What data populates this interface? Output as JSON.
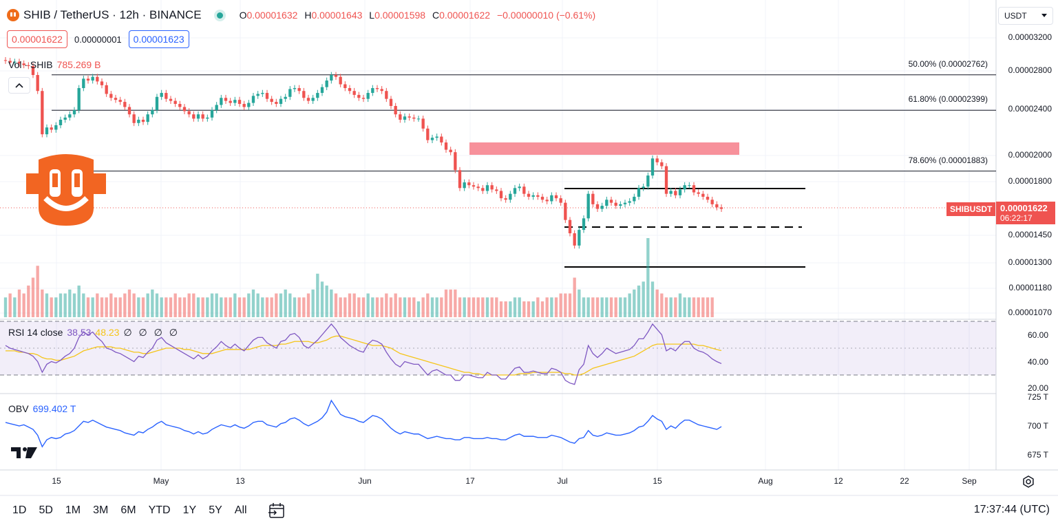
{
  "header": {
    "symbol": "SHIB / TetherUS · 12h · BINANCE",
    "open_label": "O",
    "open": "0.00001632",
    "high_label": "H",
    "high": "0.00001643",
    "low_label": "L",
    "low": "0.00001598",
    "close_label": "C",
    "close": "0.00001622",
    "change": "−0.00000010 (−0.61%)"
  },
  "trade": {
    "sell": "0.00001622",
    "spread": "0.00000001",
    "buy": "0.00001623"
  },
  "volume_legend": {
    "label": "Vol · SHIB",
    "value": "785.269 B"
  },
  "rsi_legend": {
    "label": "RSI 14 close",
    "rsi": "38.53",
    "ma": "48.23",
    "extra": "∅ ∅ ∅ ∅"
  },
  "obv_legend": {
    "label": "OBV",
    "value": "699.402 T"
  },
  "currency": "USDT",
  "price_axis": [
    "0.00003200",
    "0.00002800",
    "0.00002400",
    "0.00002000",
    "0.00001800",
    "0.00001450",
    "0.00001300",
    "0.00001180",
    "0.00001070"
  ],
  "rsi_axis": [
    "60.00",
    "40.00",
    "20.00"
  ],
  "obv_axis": [
    "725 T",
    "700 T",
    "675 T"
  ],
  "fib_levels": [
    {
      "label": "50.00% (0.00002762)",
      "price": 2.762e-05
    },
    {
      "label": "61.80% (0.00002399)",
      "price": 2.399e-05
    },
    {
      "label": "78.60% (0.00001883)",
      "price": 1.883e-05
    }
  ],
  "last_price": {
    "symbol": "SHIBUSDT",
    "value": "0.00001622",
    "countdown": "06:22:17"
  },
  "time_axis": [
    "15",
    "May",
    "13",
    "Jun",
    "17",
    "Jul",
    "15",
    "Aug",
    "12",
    "22",
    "Sep"
  ],
  "ranges": [
    "1D",
    "5D",
    "1M",
    "3M",
    "6M",
    "YTD",
    "1Y",
    "5Y",
    "All"
  ],
  "clock": "17:37:44 (UTC)",
  "colors": {
    "up": "#26a69a",
    "down": "#ef5350",
    "rsi": "#7e57c2",
    "rsi_ma": "#f5c518",
    "obv": "#2962ff",
    "zone": "#f7919b"
  },
  "icons": {
    "settings": "gear-icon",
    "calendar": "calendar-range-icon",
    "collapse": "chevron-up-icon",
    "logo": "shib-logo-icon",
    "tradingview": "tradingview-logo-icon"
  },
  "chart_data": {
    "type": "candlestick",
    "start": "2024-04-01",
    "interval": "12h",
    "close_series": [
      2.92e-05,
      2.9e-05,
      2.91e-05,
      2.89e-05,
      2.87e-05,
      2.86e-05,
      2.76e-05,
      2.59e-05,
      2.18e-05,
      2.24e-05,
      2.22e-05,
      2.26e-05,
      2.31e-05,
      2.33e-05,
      2.36e-05,
      2.4e-05,
      2.62e-05,
      2.72e-05,
      2.7e-05,
      2.74e-05,
      2.69e-05,
      2.65e-05,
      2.56e-05,
      2.52e-05,
      2.5e-05,
      2.48e-05,
      2.43e-05,
      2.36e-05,
      2.28e-05,
      2.31e-05,
      2.29e-05,
      2.36e-05,
      2.4e-05,
      2.53e-05,
      2.57e-05,
      2.51e-05,
      2.49e-05,
      2.46e-05,
      2.43e-05,
      2.39e-05,
      2.36e-05,
      2.32e-05,
      2.36e-05,
      2.32e-05,
      2.33e-05,
      2.4e-05,
      2.45e-05,
      2.52e-05,
      2.49e-05,
      2.47e-05,
      2.5e-05,
      2.46e-05,
      2.43e-05,
      2.47e-05,
      2.54e-05,
      2.56e-05,
      2.57e-05,
      2.51e-05,
      2.48e-05,
      2.46e-05,
      2.51e-05,
      2.53e-05,
      2.61e-05,
      2.62e-05,
      2.59e-05,
      2.52e-05,
      2.49e-05,
      2.52e-05,
      2.57e-05,
      2.63e-05,
      2.7e-05,
      2.76e-05,
      2.74e-05,
      2.66e-05,
      2.62e-05,
      2.59e-05,
      2.55e-05,
      2.52e-05,
      2.51e-05,
      2.57e-05,
      2.62e-05,
      2.61e-05,
      2.59e-05,
      2.51e-05,
      2.44e-05,
      2.36e-05,
      2.31e-05,
      2.34e-05,
      2.33e-05,
      2.32e-05,
      2.32e-05,
      2.23e-05,
      2.13e-05,
      2.15e-05,
      2.16e-05,
      2.11e-05,
      2.05e-05,
      2.03e-05,
      1.89e-05,
      1.76e-05,
      1.8e-05,
      1.78e-05,
      1.77e-05,
      1.76e-05,
      1.74e-05,
      1.78e-05,
      1.75e-05,
      1.74e-05,
      1.69e-05,
      1.68e-05,
      1.72e-05,
      1.76e-05,
      1.77e-05,
      1.72e-05,
      1.7e-05,
      1.71e-05,
      1.7e-05,
      1.68e-05,
      1.67e-05,
      1.71e-05,
      1.69e-05,
      1.66e-05,
      1.55e-05,
      1.47e-05,
      1.4e-05,
      1.49e-05,
      1.56e-05,
      1.72e-05,
      1.65e-05,
      1.62e-05,
      1.64e-05,
      1.68e-05,
      1.66e-05,
      1.64e-05,
      1.65e-05,
      1.66e-05,
      1.67e-05,
      1.7e-05,
      1.76e-05,
      1.77e-05,
      1.85e-05,
      1.98e-05,
      1.95e-05,
      1.92e-05,
      1.72e-05,
      1.74e-05,
      1.71e-05,
      1.75e-05,
      1.78e-05,
      1.78e-05,
      1.73e-05,
      1.72e-05,
      1.7e-05,
      1.68e-05,
      1.65e-05,
      1.63e-05,
      1.62e-05
    ],
    "volume": [
      5,
      6,
      5,
      7,
      6,
      8,
      10,
      13,
      7,
      6,
      5,
      5,
      6,
      6,
      7,
      6,
      8,
      6,
      5,
      5,
      6,
      5,
      5,
      6,
      5,
      5,
      6,
      7,
      6,
      5,
      5,
      6,
      7,
      6,
      5,
      5,
      5,
      6,
      5,
      5,
      6,
      6,
      5,
      5,
      5,
      6,
      6,
      5,
      5,
      5,
      6,
      5,
      5,
      6,
      7,
      6,
      5,
      5,
      5,
      6,
      6,
      7,
      6,
      5,
      5,
      5,
      6,
      7,
      11,
      9,
      8,
      7,
      6,
      5,
      5,
      6,
      6,
      5,
      5,
      6,
      5,
      5,
      5,
      6,
      5,
      6,
      5,
      5,
      5,
      5,
      4,
      5,
      6,
      5,
      5,
      5,
      7,
      7,
      7,
      5,
      5,
      5,
      5,
      5,
      5,
      5,
      5,
      5,
      4,
      4,
      4,
      5,
      5,
      4,
      4,
      4,
      5,
      4,
      5,
      5,
      5,
      6,
      6,
      6,
      10,
      7,
      5,
      5,
      5,
      5,
      5,
      5,
      5,
      5,
      5,
      5,
      6,
      7,
      8,
      9,
      20,
      9,
      7,
      6,
      5,
      5,
      5,
      6,
      5,
      5,
      5,
      5,
      5,
      5,
      5
    ],
    "rsi": [
      52,
      50,
      49,
      48,
      47,
      46,
      44,
      40,
      32,
      38,
      40,
      39,
      41,
      44,
      46,
      50,
      58,
      62,
      60,
      62,
      58,
      55,
      50,
      49,
      47,
      46,
      44,
      42,
      40,
      44,
      43,
      47,
      50,
      56,
      58,
      54,
      52,
      50,
      48,
      46,
      44,
      42,
      45,
      42,
      44,
      48,
      51,
      55,
      52,
      50,
      53,
      50,
      48,
      52,
      56,
      58,
      58,
      54,
      52,
      50,
      55,
      56,
      60,
      61,
      58,
      52,
      50,
      53,
      56,
      60,
      64,
      68,
      64,
      58,
      55,
      52,
      50,
      48,
      47,
      53,
      56,
      55,
      53,
      47,
      42,
      38,
      36,
      40,
      39,
      38,
      38,
      34,
      30,
      33,
      34,
      32,
      30,
      30,
      26,
      26,
      30,
      30,
      29,
      28,
      28,
      32,
      30,
      30,
      27,
      27,
      31,
      35,
      36,
      32,
      32,
      33,
      32,
      31,
      31,
      35,
      34,
      32,
      26,
      24,
      23,
      34,
      38,
      52,
      46,
      43,
      46,
      50,
      48,
      46,
      47,
      48,
      49,
      52,
      57,
      57,
      62,
      68,
      64,
      60,
      48,
      50,
      48,
      52,
      55,
      55,
      50,
      48,
      47,
      45,
      42,
      40,
      38.5
    ],
    "rsi_ma": [
      48,
      48,
      48,
      47,
      47,
      46,
      46,
      45,
      43,
      42,
      42,
      41,
      41,
      42,
      43,
      44,
      46,
      48,
      49,
      50,
      51,
      51,
      51,
      51,
      50,
      50,
      49,
      48,
      47,
      47,
      46,
      46,
      47,
      48,
      49,
      50,
      50,
      50,
      50,
      49,
      49,
      48,
      47,
      46,
      46,
      46,
      47,
      48,
      49,
      49,
      49,
      49,
      49,
      49,
      50,
      51,
      52,
      52,
      52,
      52,
      53,
      53,
      54,
      55,
      55,
      55,
      55,
      54,
      54,
      55,
      56,
      58,
      59,
      59,
      58,
      57,
      56,
      55,
      54,
      53,
      52,
      52,
      52,
      51,
      50,
      48,
      46,
      45,
      44,
      43,
      42,
      41,
      40,
      39,
      38,
      37,
      36,
      35,
      34,
      33,
      32,
      32,
      31,
      31,
      30,
      30,
      30,
      30,
      30,
      30,
      30,
      30,
      31,
      31,
      31,
      32,
      32,
      32,
      32,
      32,
      32,
      32,
      31,
      31,
      30,
      30,
      31,
      33,
      35,
      36,
      37,
      38,
      39,
      40,
      41,
      42,
      43,
      44,
      46,
      48,
      50,
      52,
      53,
      53,
      53,
      53,
      53,
      53,
      53,
      53,
      53,
      52,
      52,
      51,
      50,
      49,
      48.2
    ],
    "obv": [
      703,
      702,
      701,
      700,
      701,
      699,
      697,
      692,
      682,
      688,
      690,
      689,
      690,
      693,
      694,
      696,
      700,
      704,
      703,
      705,
      703,
      701,
      699,
      698,
      697,
      696,
      694,
      693,
      692,
      695,
      694,
      697,
      699,
      702,
      704,
      701,
      700,
      699,
      698,
      696,
      695,
      693,
      695,
      693,
      694,
      697,
      699,
      701,
      700,
      699,
      701,
      699,
      698,
      700,
      703,
      704,
      704,
      701,
      700,
      699,
      702,
      703,
      706,
      707,
      705,
      702,
      700,
      702,
      704,
      707,
      712,
      722,
      716,
      710,
      708,
      707,
      706,
      704,
      703,
      706,
      709,
      708,
      706,
      702,
      698,
      695,
      693,
      695,
      694,
      693,
      693,
      691,
      689,
      690,
      691,
      690,
      689,
      689,
      688,
      688,
      690,
      690,
      689,
      689,
      689,
      690,
      689,
      689,
      688,
      688,
      690,
      692,
      693,
      691,
      691,
      691,
      690,
      690,
      690,
      692,
      691,
      690,
      688,
      686,
      685,
      689,
      690,
      696,
      692,
      691,
      692,
      694,
      693,
      692,
      692,
      693,
      694,
      696,
      699,
      700,
      704,
      709,
      706,
      704,
      697,
      700,
      698,
      702,
      705,
      705,
      703,
      701,
      700,
      699,
      698,
      697,
      699.4
    ]
  }
}
